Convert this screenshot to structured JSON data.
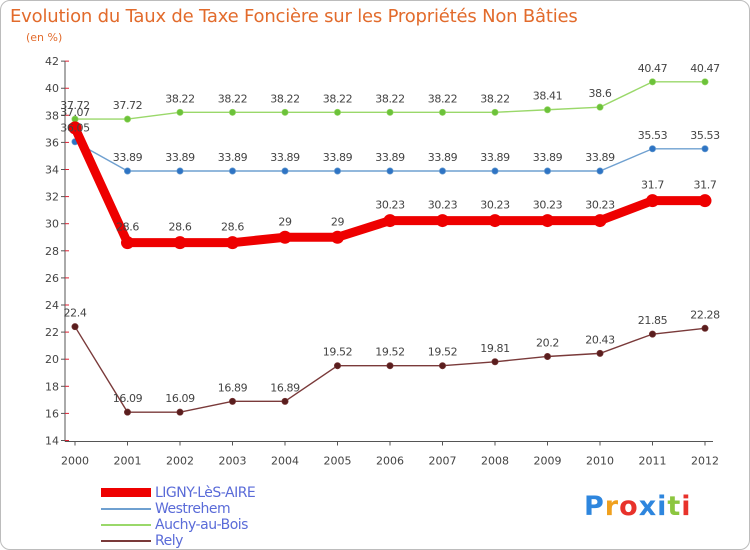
{
  "header": {
    "title": "Evolution du Taux de Taxe Foncière sur les Propriétés Non Bâties",
    "subtitle": "(en %)"
  },
  "chart_data": {
    "type": "line",
    "title": "Evolution du Taux de Taxe Foncière sur les Propriétés Non Bâties",
    "ylabel": "(en %)",
    "xlabel": "",
    "categories": [
      "2000",
      "2001",
      "2002",
      "2003",
      "2004",
      "2005",
      "2006",
      "2007",
      "2008",
      "2009",
      "2010",
      "2011",
      "2012"
    ],
    "yticks": [
      14,
      16,
      18,
      20,
      22,
      24,
      26,
      28,
      30,
      32,
      34,
      36,
      38,
      40,
      42
    ],
    "ylim": [
      14,
      42
    ],
    "grid": false,
    "legend_position": "bottom-left",
    "series": [
      {
        "name": "LIGNY-LèS-AIRE",
        "color": "#ee0000",
        "style": "thick",
        "values": [
          37.07,
          28.6,
          28.6,
          28.6,
          29,
          29,
          30.23,
          30.23,
          30.23,
          30.23,
          30.23,
          31.7,
          31.7
        ],
        "labels": [
          "37.07",
          "28.6",
          "28.6",
          "28.6",
          "29",
          "29",
          "30.23",
          "30.23",
          "30.23",
          "30.23",
          "30.23",
          "31.7",
          "31.7"
        ]
      },
      {
        "name": "Westrehem",
        "color": "#6fa0d0",
        "marker": "#2e74c4",
        "values": [
          36.05,
          33.89,
          33.89,
          33.89,
          33.89,
          33.89,
          33.89,
          33.89,
          33.89,
          33.89,
          33.89,
          35.53,
          35.53
        ],
        "labels": [
          "36.05",
          "33.89",
          "33.89",
          "33.89",
          "33.89",
          "33.89",
          "33.89",
          "33.89",
          "33.89",
          "33.89",
          "33.89",
          "35.53",
          "35.53"
        ]
      },
      {
        "name": "Auchy-au-Bois",
        "color": "#9ad86a",
        "marker": "#6cc23a",
        "values": [
          37.72,
          37.72,
          38.22,
          38.22,
          38.22,
          38.22,
          38.22,
          38.22,
          38.22,
          38.41,
          38.6,
          40.47,
          40.47
        ],
        "labels": [
          "37.72",
          "37.72",
          "38.22",
          "38.22",
          "38.22",
          "38.22",
          "38.22",
          "38.22",
          "38.22",
          "38.41",
          "38.6",
          "40.47",
          "40.47"
        ]
      },
      {
        "name": "Rely",
        "color": "#7a3a3a",
        "marker": "#5a1e1e",
        "values": [
          22.4,
          16.09,
          16.09,
          16.89,
          16.89,
          19.52,
          19.52,
          19.52,
          19.81,
          20.2,
          20.43,
          21.85,
          22.28
        ],
        "labels": [
          "22.4",
          "16.09",
          "16.09",
          "16.89",
          "16.89",
          "19.52",
          "19.52",
          "19.52",
          "19.81",
          "20.2",
          "20.43",
          "21.85",
          "22.28"
        ]
      }
    ]
  },
  "branding": {
    "logo_text": "Proxiti",
    "logo_colors": [
      "#2e86de",
      "#f0a01e",
      "#e8322b",
      "#2e86de",
      "#2e86de",
      "#8cc63f",
      "#e8322b"
    ]
  }
}
